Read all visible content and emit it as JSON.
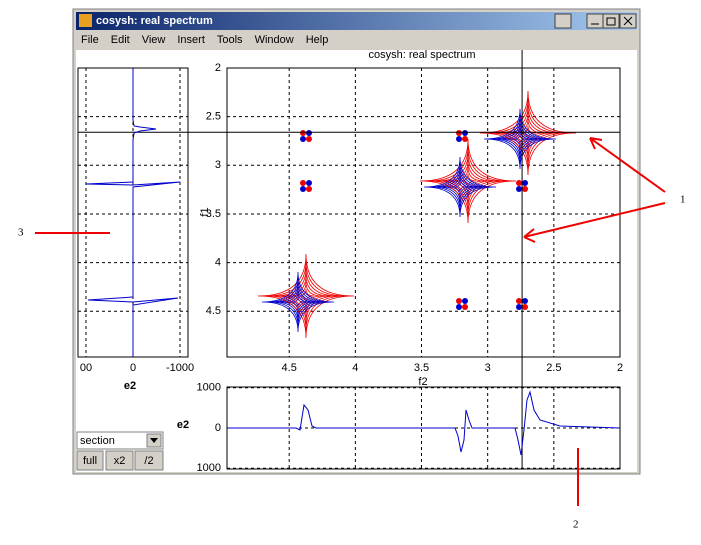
{
  "window": {
    "title": "cosysh: real spectrum",
    "menu": [
      "File",
      "Edit",
      "View",
      "Insert",
      "Tools",
      "Window",
      "Help"
    ]
  },
  "main_plot": {
    "title": "cosysh: real spectrum",
    "x_label": "f2",
    "y_label": "f1",
    "xlim": [
      4.97,
      2
    ],
    "ylim": [
      2,
      4.97
    ],
    "xticks": [
      4.5,
      4,
      3.5,
      3,
      2.5,
      2
    ],
    "yticks": [
      2,
      2.5,
      3,
      3.5,
      4,
      4.5
    ],
    "crosshair": {
      "x": 2.74,
      "y": 2.66
    }
  },
  "side_plot": {
    "x_label": "e2",
    "xlim": [
      1170,
      -1170
    ],
    "xticks": [
      {
        "value": 1000,
        "label": "00"
      },
      0,
      -1000
    ]
  },
  "bottom_plot": {
    "y_label": "e2",
    "ylim": [
      1020,
      -1020
    ],
    "yticks": [
      1000,
      0,
      {
        "value": -1000,
        "label": "1000"
      }
    ]
  },
  "controls": {
    "dropdown": "section",
    "buttons": [
      "full",
      "x2",
      "/2"
    ]
  },
  "annotations": [
    "1",
    "2",
    "3"
  ]
}
